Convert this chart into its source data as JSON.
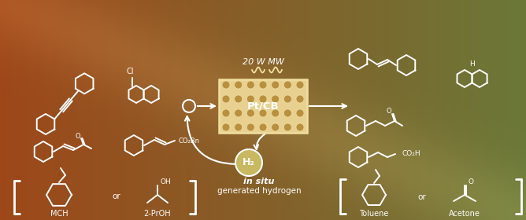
{
  "white": "#FFFFFF",
  "cream": "#F0DFA0",
  "light_cream": "#E8D090",
  "reactor_face": "#D4B870",
  "reactor_dot": "#B89040",
  "h2_fill": "#C8B860",
  "title_20w": "20 W MW",
  "ptcb_label": "Pt/CB",
  "h2_label": "H₂",
  "in_situ_line1": "in situ",
  "in_situ_line2": "generated hydrogen",
  "mch_label": "MCH",
  "proh_label": "2-PrOH",
  "toluene_label": "Toluene",
  "acetone_label": "Acetone",
  "or_label": "or",
  "cl_label": "Cl",
  "o_label": "O",
  "oh_label": "OH",
  "co2bn_label": "CO₂Bn",
  "co2h_label": "CO₂H",
  "h_label": "H",
  "figsize": [
    6.68,
    2.8
  ],
  "dpi": 100
}
